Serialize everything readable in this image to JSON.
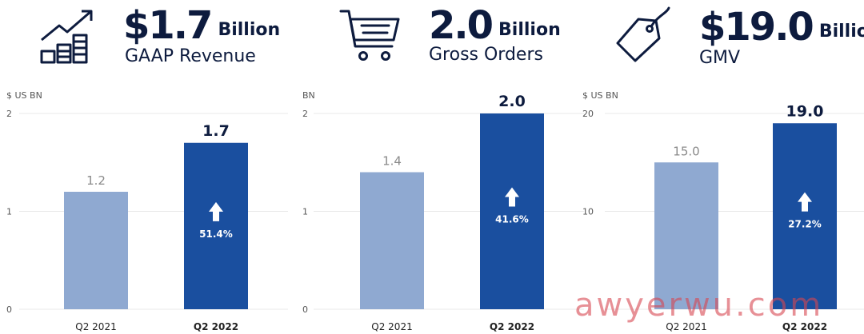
{
  "kpis": [
    {
      "value": "$1.7",
      "unit": "Billion",
      "label": "GAAP Revenue",
      "icon": "growth-chart-icon"
    },
    {
      "value": "2.0",
      "unit": "Billion",
      "label": "Gross Orders",
      "icon": "shopping-cart-icon"
    },
    {
      "value": "$19.0",
      "unit": "Billion",
      "label": "GMV",
      "icon": "price-tag-icon"
    }
  ],
  "colors": {
    "prior": "#8fa9d1",
    "current": "#1a4f9f",
    "text": "#0d1b3e",
    "axis": "#555555",
    "prior_label": "#8a8a8a"
  },
  "chart_data": [
    {
      "type": "bar",
      "ylabel": "$ US BN",
      "categories": [
        "Q2 2021",
        "Q2 2022"
      ],
      "values": [
        1.2,
        1.7
      ],
      "value_labels": [
        "1.2",
        "1.7"
      ],
      "growth_label": "51.4%",
      "ylim": [
        0,
        2
      ],
      "yticks": [
        0,
        1,
        2
      ],
      "ytick_labels": [
        "0",
        "1",
        "2"
      ]
    },
    {
      "type": "bar",
      "ylabel": "BN",
      "categories": [
        "Q2 2021",
        "Q2 2022"
      ],
      "values": [
        1.4,
        2.0
      ],
      "value_labels": [
        "1.4",
        "2.0"
      ],
      "growth_label": "41.6%",
      "ylim": [
        0,
        2
      ],
      "yticks": [
        0,
        1,
        2
      ],
      "ytick_labels": [
        "0",
        "1",
        "2"
      ]
    },
    {
      "type": "bar",
      "ylabel": "$ US BN",
      "categories": [
        "Q2 2021",
        "Q2 2022"
      ],
      "values": [
        15.0,
        19.0
      ],
      "value_labels": [
        "15.0",
        "19.0"
      ],
      "growth_label": "27.2%",
      "ylim": [
        0,
        20
      ],
      "yticks": [
        0,
        10,
        20
      ],
      "ytick_labels": [
        "",
        "10",
        "20"
      ]
    }
  ],
  "watermark": "awyerwu.com"
}
